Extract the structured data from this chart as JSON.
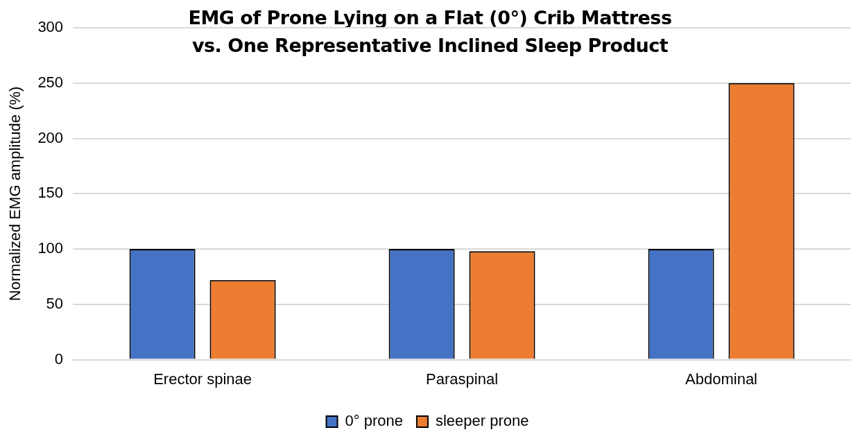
{
  "chart_data": {
    "type": "bar",
    "title": "EMG of Prone Lying on a Flat (0°) Crib Mattress vs. One Representative Inclined Sleep Product",
    "ylabel": "Normalized EMG amplitude (%)",
    "categories": [
      "Erector spinae",
      "Paraspinal",
      "Abdominal"
    ],
    "series": [
      {
        "name": "0° prone",
        "color": "#4472c4",
        "values": [
          100,
          100,
          100
        ]
      },
      {
        "name": "sleeper prone",
        "color": "#ed7d31",
        "values": [
          72,
          98,
          250
        ]
      }
    ],
    "ylim": [
      0,
      300
    ],
    "yticks": [
      0,
      50,
      100,
      150,
      200,
      250,
      300
    ],
    "grid": "y",
    "legend": "bottom"
  }
}
